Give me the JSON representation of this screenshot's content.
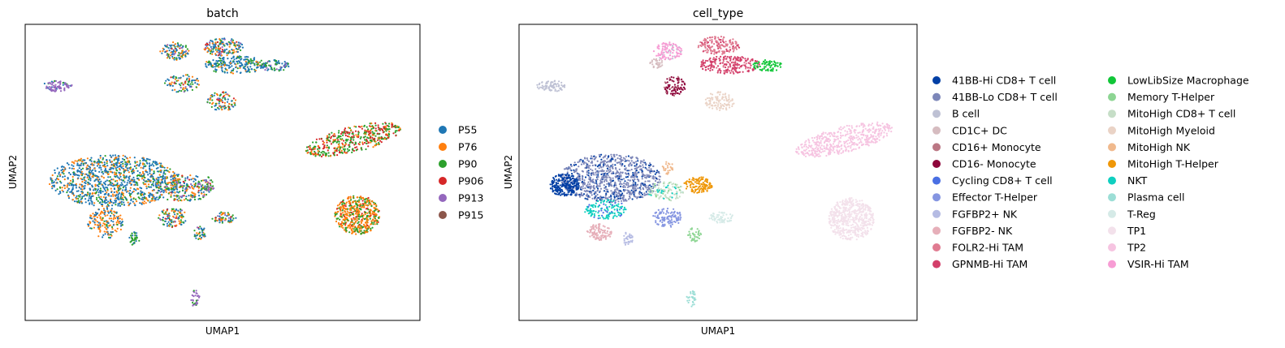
{
  "chart_data": [
    {
      "type": "scatter",
      "title": "batch",
      "xlabel": "UMAP1",
      "ylabel": "UMAP2",
      "grid": false,
      "ticks": false,
      "legend_placement": "right",
      "legend": [
        {
          "label": "P55",
          "color": "#1f77b4"
        },
        {
          "label": "P76",
          "color": "#ff7f0e"
        },
        {
          "label": "P90",
          "color": "#2ca02c"
        },
        {
          "label": "P906",
          "color": "#d62728"
        },
        {
          "label": "P913",
          "color": "#9467bd"
        },
        {
          "label": "P915",
          "color": "#8c564b"
        }
      ]
    },
    {
      "type": "scatter",
      "title": "cell_type",
      "xlabel": "UMAP1",
      "ylabel": "UMAP2",
      "grid": false,
      "ticks": false,
      "legend_placement": "right",
      "legend_columns": 2,
      "legend": [
        {
          "label": "41BB-Hi CD8+ T cell",
          "color": "#023fa5"
        },
        {
          "label": "41BB-Lo CD8+ T cell",
          "color": "#7d87b9"
        },
        {
          "label": "B cell",
          "color": "#bec1d4"
        },
        {
          "label": "CD1C+ DC",
          "color": "#d6bcc0"
        },
        {
          "label": "CD16+ Monocyte",
          "color": "#bb7784"
        },
        {
          "label": "CD16- Monocyte",
          "color": "#8e063b"
        },
        {
          "label": "Cycling CD8+ T cell",
          "color": "#4a6fe3"
        },
        {
          "label": "Effector T-Helper",
          "color": "#8595e1"
        },
        {
          "label": "FGFBP2+ NK",
          "color": "#b5bbe3"
        },
        {
          "label": "FGFBP2- NK",
          "color": "#e6afb9"
        },
        {
          "label": "FOLR2-Hi TAM",
          "color": "#e07b91"
        },
        {
          "label": "GPNMB-Hi TAM",
          "color": "#d33f6a"
        },
        {
          "label": "LowLibSize Macrophage",
          "color": "#11c638"
        },
        {
          "label": "Memory T-Helper",
          "color": "#8dd593"
        },
        {
          "label": "MitoHigh CD8+ T cell",
          "color": "#c6dec7"
        },
        {
          "label": "MitoHigh Myeloid",
          "color": "#ead3c6"
        },
        {
          "label": "MitoHigh NK",
          "color": "#f0b98d"
        },
        {
          "label": "MitoHigh T-Helper",
          "color": "#ef9708"
        },
        {
          "label": "NKT",
          "color": "#0fcfc0"
        },
        {
          "label": "Plasma cell",
          "color": "#9cded6"
        },
        {
          "label": "T-Reg",
          "color": "#d5eae7"
        },
        {
          "label": "TP1",
          "color": "#f3e1eb"
        },
        {
          "label": "TP2",
          "color": "#f6c4e1"
        },
        {
          "label": "VSIR-Hi TAM",
          "color": "#f79cd4"
        }
      ]
    }
  ]
}
